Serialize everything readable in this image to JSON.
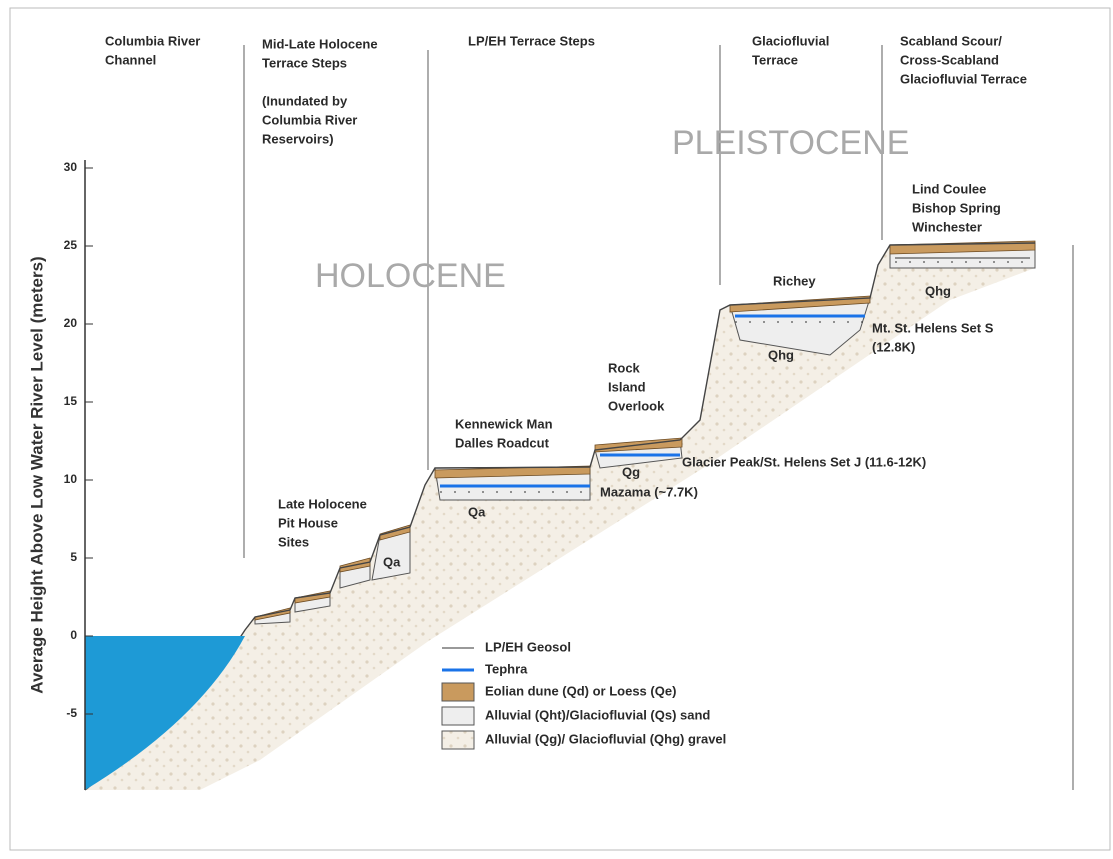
{
  "axis": {
    "title": "Average Height Above Low Water River Level (meters)",
    "ticks": [
      30,
      25,
      20,
      15,
      10,
      5,
      0,
      -5
    ]
  },
  "headers": [
    {
      "lines": [
        "Columbia River",
        "Channel"
      ]
    },
    {
      "lines": [
        "Mid-Late Holocene",
        "Terrace Steps"
      ]
    },
    {
      "lines": [
        "(Inundated by",
        "Columbia River",
        "Reservoirs)"
      ]
    },
    {
      "lines": [
        "LP/EH Terrace Steps"
      ]
    },
    {
      "lines": [
        "Glaciofluvial",
        "Terrace"
      ]
    },
    {
      "lines": [
        "Scabland Scour/",
        "Cross-Scabland",
        "Glaciofluvial Terrace"
      ]
    }
  ],
  "eras": [
    "HOLOCENE",
    "PLEISTOCENE"
  ],
  "labels": [
    {
      "lines": [
        "Late Holocene",
        "Pit House",
        "Sites"
      ]
    },
    {
      "lines": [
        "Qa"
      ]
    },
    {
      "lines": [
        "Kennewick Man",
        "Dalles Roadcut"
      ]
    },
    {
      "lines": [
        "Qa"
      ]
    },
    {
      "lines": [
        "Qg"
      ]
    },
    {
      "lines": [
        "Mazama (~7.7K)"
      ]
    },
    {
      "lines": [
        "Rock",
        "Island",
        "Overlook"
      ]
    },
    {
      "lines": [
        "Glacier Peak/St. Helens Set J (11.6-12K)"
      ]
    },
    {
      "lines": [
        "Richey"
      ]
    },
    {
      "lines": [
        "Qhg"
      ]
    },
    {
      "lines": [
        "Mt. St. Helens Set S",
        "(12.8K)"
      ]
    },
    {
      "lines": [
        "Lind Coulee",
        "Bishop Spring",
        "Winchester"
      ]
    },
    {
      "lines": [
        "Qhg"
      ]
    }
  ],
  "legend": [
    "LP/EH Geosol",
    "Tephra",
    "Eolian dune (Qd) or Loess (Qe)",
    "Alluvial (Qht)/Glaciofluvial (Qs) sand",
    "Alluvial (Qg)/ Glaciofluvial (Qhg) gravel"
  ]
}
